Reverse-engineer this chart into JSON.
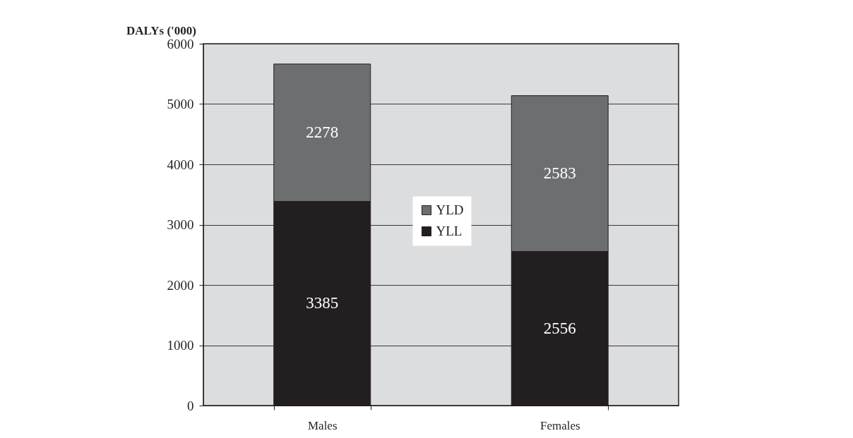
{
  "chart_data": {
    "type": "bar",
    "ylabel": "DALYs ('000)",
    "categories": [
      "Males",
      "Females"
    ],
    "stacked": true,
    "series": [
      {
        "name": "YLL",
        "color": "#231f20",
        "values": [
          3385,
          2556
        ]
      },
      {
        "name": "YLD",
        "color": "#6d6e70",
        "values": [
          2278,
          2583
        ]
      }
    ],
    "ylim": [
      0,
      6000
    ],
    "yticks": [
      0,
      1000,
      2000,
      3000,
      4000,
      5000,
      6000
    ],
    "grid": "y",
    "legend": "center",
    "data_labels": true
  }
}
